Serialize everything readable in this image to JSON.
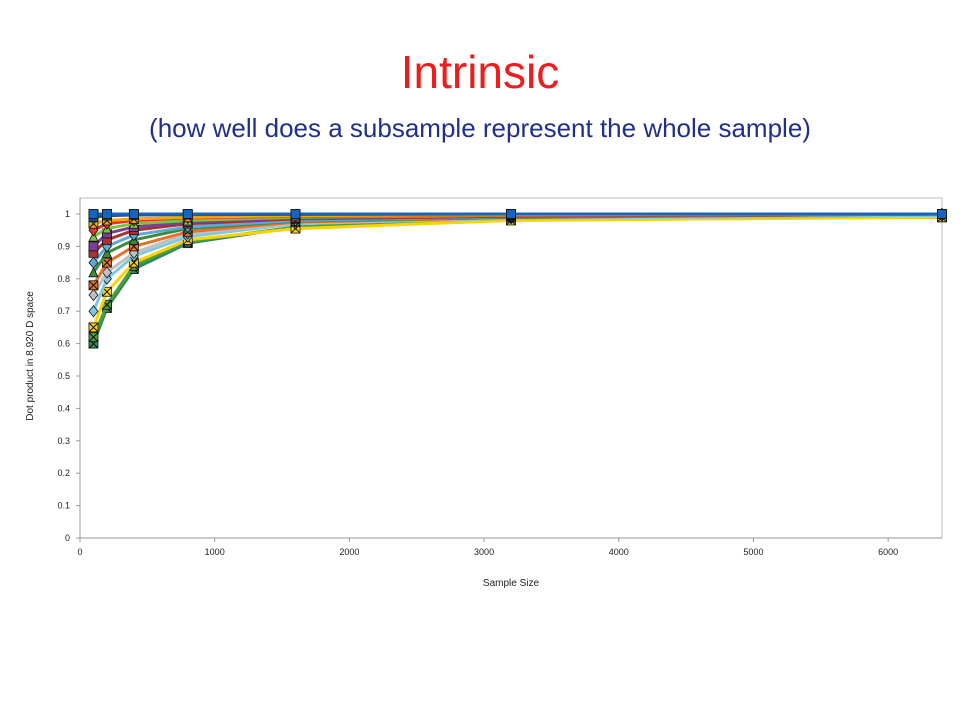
{
  "title": "Intrinsic",
  "subtitle": "(how well does a subsample represent the whole sample)",
  "chart_data": {
    "type": "line",
    "xlabel": "Sample Size",
    "ylabel": "Dot product in 8,920 D space",
    "xlim": [
      0,
      6400
    ],
    "ylim": [
      0,
      1
    ],
    "xticks": [
      "0",
      "1000",
      "2000",
      "3000",
      "4000",
      "5000",
      "6000"
    ],
    "yticks": [
      "0",
      "0.1",
      "0.2",
      "0.3",
      "0.4",
      "0.5",
      "0.6",
      "0.7",
      "0.8",
      "0.9",
      "1"
    ],
    "grid": false,
    "legend": "none",
    "x": [
      100,
      200,
      400,
      800,
      1600,
      3200,
      6400
    ],
    "series": [
      {
        "color": "#2f6db5",
        "marker": "square",
        "values": [
          1.0,
          1.0,
          1.0,
          1.0,
          1.0,
          1.0,
          1.0
        ]
      },
      {
        "color": "#1a4a8a",
        "marker": "square",
        "values": [
          0.99,
          0.995,
          0.997,
          0.998,
          0.999,
          1.0,
          1.0
        ]
      },
      {
        "color": "#f2a900",
        "marker": "x",
        "values": [
          0.97,
          0.98,
          0.985,
          0.99,
          0.995,
          0.998,
          1.0
        ]
      },
      {
        "color": "#e62f2f",
        "marker": "diamond",
        "values": [
          0.95,
          0.97,
          0.98,
          0.988,
          0.993,
          0.997,
          1.0
        ]
      },
      {
        "color": "#7fc241",
        "marker": "triangle",
        "values": [
          0.93,
          0.955,
          0.97,
          0.98,
          0.99,
          0.996,
          1.0
        ]
      },
      {
        "color": "#7a3f9a",
        "marker": "square",
        "values": [
          0.9,
          0.94,
          0.96,
          0.975,
          0.988,
          0.995,
          1.0
        ]
      },
      {
        "color": "#a8322f",
        "marker": "square",
        "values": [
          0.88,
          0.92,
          0.95,
          0.97,
          0.985,
          0.993,
          1.0
        ]
      },
      {
        "color": "#5fa8d3",
        "marker": "diamond",
        "values": [
          0.85,
          0.9,
          0.935,
          0.96,
          0.98,
          0.992,
          1.0
        ]
      },
      {
        "color": "#3c8a3c",
        "marker": "triangle",
        "values": [
          0.82,
          0.88,
          0.92,
          0.955,
          0.978,
          0.99,
          1.0
        ]
      },
      {
        "color": "#e8702a",
        "marker": "x",
        "values": [
          0.78,
          0.85,
          0.9,
          0.945,
          0.975,
          0.989,
          1.0
        ]
      },
      {
        "color": "#c0c0c0",
        "marker": "diamond",
        "values": [
          0.75,
          0.82,
          0.88,
          0.94,
          0.972,
          0.988,
          1.0
        ]
      },
      {
        "color": "#7ec8e3",
        "marker": "diamond",
        "values": [
          0.7,
          0.8,
          0.87,
          0.93,
          0.97,
          0.987,
          0.995
        ]
      },
      {
        "color": "#ffd200",
        "marker": "x",
        "values": [
          0.65,
          0.76,
          0.85,
          0.92,
          0.955,
          0.98,
          0.99
        ]
      },
      {
        "color": "#4f9e3a",
        "marker": "x",
        "values": [
          0.62,
          0.72,
          0.84,
          0.915,
          0.96,
          0.984,
          0.99
        ]
      },
      {
        "color": "#2e8b57",
        "marker": "x",
        "values": [
          0.6,
          0.71,
          0.83,
          0.91,
          0.96,
          0.985,
          0.99
        ]
      },
      {
        "color": "#1565c0",
        "marker": "square",
        "values": [
          1.0,
          1.0,
          1.0,
          1.0,
          1.0,
          1.0,
          1.0
        ]
      }
    ]
  }
}
